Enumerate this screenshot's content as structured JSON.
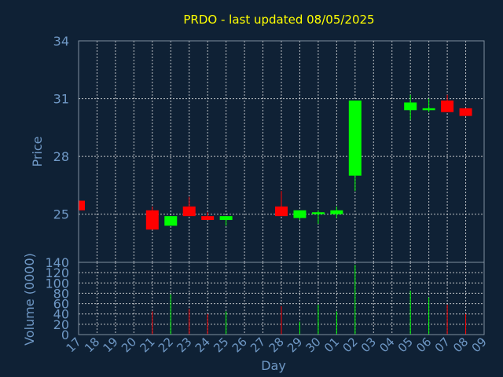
{
  "chart_data": [
    {
      "type": "candlestick",
      "title": "PRDO - last updated 08/05/2025",
      "ylabel": "Price",
      "ylim": [
        22.5,
        34
      ],
      "yticks": [
        25,
        28,
        31,
        34
      ],
      "grid": true,
      "colors": {
        "up": "#00ff00",
        "down": "#ff0000",
        "background": "#0f2135",
        "text": "#6f98c5",
        "title": "#ffff00"
      },
      "candles": [
        {
          "day": "17",
          "open": 25.7,
          "high": 25.9,
          "low": 25.2,
          "close": 25.2
        },
        {
          "day": "21",
          "open": 25.2,
          "high": 25.4,
          "low": 24.2,
          "close": 24.2
        },
        {
          "day": "22",
          "open": 24.4,
          "high": 24.9,
          "low": 24.4,
          "close": 24.9
        },
        {
          "day": "23",
          "open": 25.4,
          "high": 25.9,
          "low": 24.9,
          "close": 24.9
        },
        {
          "day": "24",
          "open": 24.9,
          "high": 25.1,
          "low": 24.7,
          "close": 24.7
        },
        {
          "day": "25",
          "open": 24.7,
          "high": 24.9,
          "low": 24.4,
          "close": 24.9
        },
        {
          "day": "28",
          "open": 25.4,
          "high": 26.2,
          "low": 24.9,
          "close": 24.9
        },
        {
          "day": "29",
          "open": 24.8,
          "high": 25.2,
          "low": 24.7,
          "close": 25.2
        },
        {
          "day": "30",
          "open": 25.0,
          "high": 25.2,
          "low": 24.5,
          "close": 25.1
        },
        {
          "day": "01",
          "open": 25.0,
          "high": 25.4,
          "low": 24.8,
          "close": 25.2
        },
        {
          "day": "02",
          "open": 27.0,
          "high": 30.9,
          "low": 26.2,
          "close": 30.9
        },
        {
          "day": "05",
          "open": 30.4,
          "high": 31.2,
          "low": 29.9,
          "close": 30.8
        },
        {
          "day": "06",
          "open": 30.4,
          "high": 31.0,
          "low": 30.3,
          "close": 30.5
        },
        {
          "day": "07",
          "open": 30.9,
          "high": 31.2,
          "low": 30.3,
          "close": 30.3
        },
        {
          "day": "08",
          "open": 30.5,
          "high": 30.5,
          "low": 30.1,
          "close": 30.1
        }
      ]
    },
    {
      "type": "bar",
      "ylabel": "Volume (0000)",
      "xlabel": "Day",
      "ylim": [
        0,
        140
      ],
      "yticks": [
        0,
        20,
        40,
        60,
        80,
        100,
        120,
        140
      ],
      "categories": [
        "17",
        "18",
        "19",
        "20",
        "21",
        "22",
        "23",
        "24",
        "25",
        "26",
        "27",
        "28",
        "29",
        "30",
        "01",
        "02",
        "03",
        "04",
        "05",
        "06",
        "07",
        "08",
        "09"
      ],
      "bars": [
        {
          "day": "21",
          "value": 45,
          "color": "#ff0000"
        },
        {
          "day": "22",
          "value": 78,
          "color": "#00ff00"
        },
        {
          "day": "23",
          "value": 50,
          "color": "#ff0000"
        },
        {
          "day": "24",
          "value": 40,
          "color": "#ff0000"
        },
        {
          "day": "25",
          "value": 45,
          "color": "#00ff00"
        },
        {
          "day": "28",
          "value": 55,
          "color": "#ff0000"
        },
        {
          "day": "29",
          "value": 25,
          "color": "#00ff00"
        },
        {
          "day": "30",
          "value": 58,
          "color": "#00ff00"
        },
        {
          "day": "01",
          "value": 45,
          "color": "#00ff00"
        },
        {
          "day": "02",
          "value": 135,
          "color": "#00ff00"
        },
        {
          "day": "05",
          "value": 85,
          "color": "#00ff00"
        },
        {
          "day": "06",
          "value": 72,
          "color": "#00ff00"
        },
        {
          "day": "07",
          "value": 58,
          "color": "#ff0000"
        },
        {
          "day": "08",
          "value": 40,
          "color": "#ff0000"
        }
      ]
    }
  ]
}
